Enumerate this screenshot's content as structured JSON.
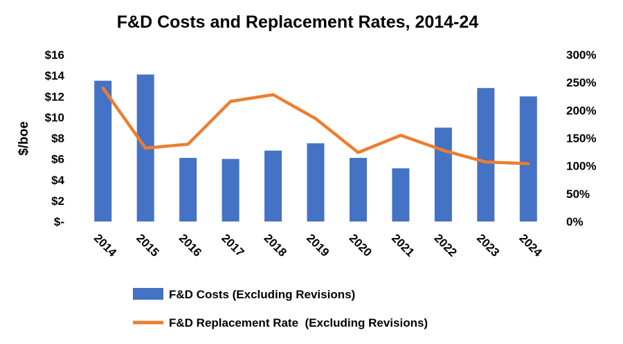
{
  "chart_data": {
    "type": "bar",
    "title": "F&D Costs and Replacement Rates, 2014-24",
    "ylabel": "$/boe",
    "categories": [
      "2014",
      "2015",
      "2016",
      "2017",
      "2018",
      "2019",
      "2020",
      "2021",
      "2022",
      "2023",
      "2024"
    ],
    "series": [
      {
        "name": "F&D Costs (Excluding Revisions)",
        "type": "bar",
        "axis": "left",
        "color": "#4472C4",
        "values": [
          13.5,
          14.1,
          6.1,
          6.0,
          6.8,
          7.5,
          6.1,
          5.1,
          9.0,
          12.8,
          12.0
        ]
      },
      {
        "name": "F&D Replacement Rate  (Excluding Revisions)",
        "type": "line",
        "axis": "right",
        "color": "#ED7D31",
        "values": [
          2.4,
          1.32,
          1.39,
          2.16,
          2.28,
          1.85,
          1.24,
          1.55,
          1.28,
          1.07,
          1.04
        ]
      }
    ],
    "left_axis": {
      "ylim": [
        0,
        16
      ],
      "ticks": [
        {
          "value": 0,
          "label": "$-"
        },
        {
          "value": 2,
          "label": "$2"
        },
        {
          "value": 4,
          "label": "$4"
        },
        {
          "value": 6,
          "label": "$6"
        },
        {
          "value": 8,
          "label": "$8"
        },
        {
          "value": 10,
          "label": "$10"
        },
        {
          "value": 12,
          "label": "$12"
        },
        {
          "value": 14,
          "label": "$14"
        },
        {
          "value": 16,
          "label": "$16"
        }
      ]
    },
    "right_axis": {
      "ylim": [
        0,
        3
      ],
      "ticks": [
        {
          "value": 0,
          "label": "0%"
        },
        {
          "value": 0.5,
          "label": "50%"
        },
        {
          "value": 1,
          "label": "100%"
        },
        {
          "value": 1.5,
          "label": "150%"
        },
        {
          "value": 2,
          "label": "200%"
        },
        {
          "value": 2.5,
          "label": "250%"
        },
        {
          "value": 3,
          "label": "300%"
        }
      ]
    },
    "grid": false,
    "legend": "bottom"
  }
}
